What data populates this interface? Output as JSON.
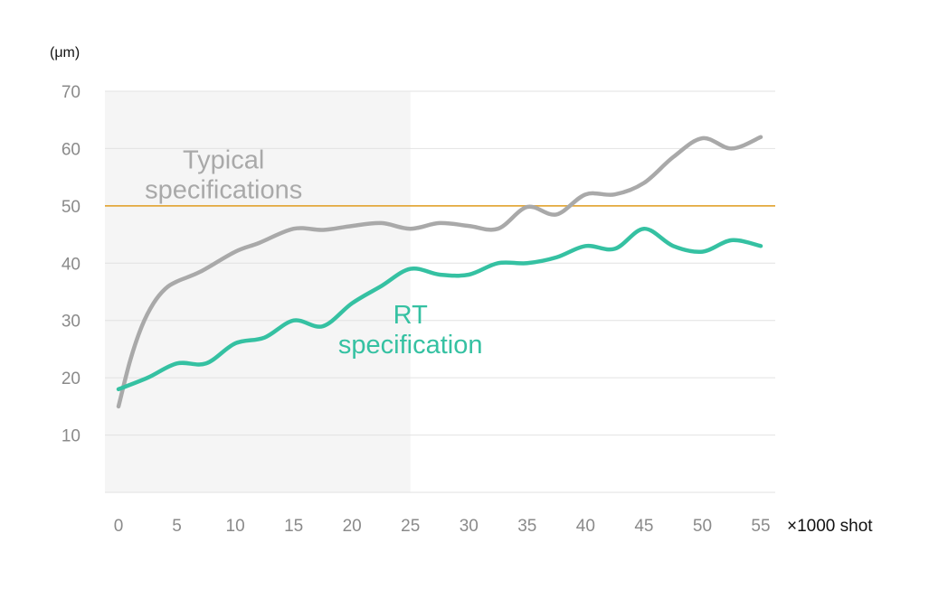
{
  "chart_data": {
    "type": "line",
    "title": "",
    "ylabel": "(μm)",
    "xlabel": "×1000 shot",
    "xlim": [
      0,
      55
    ],
    "ylim": [
      0,
      70
    ],
    "x_ticks": [
      0,
      5,
      10,
      15,
      20,
      25,
      30,
      35,
      40,
      45,
      50,
      55
    ],
    "y_ticks": [
      10,
      20,
      30,
      40,
      50,
      60,
      70
    ],
    "grid": true,
    "shaded_region": {
      "x_from": 0,
      "x_to": 25,
      "color": "#f5f5f5"
    },
    "reference_line": {
      "y": 50,
      "color": "#e3a83c"
    },
    "series": [
      {
        "name_lines": [
          "Typical",
          "specifications"
        ],
        "color": "#a9a9a9",
        "label_at": {
          "x": 9,
          "y": 56.5
        },
        "points": [
          [
            0,
            15
          ],
          [
            1,
            23
          ],
          [
            2,
            29
          ],
          [
            3,
            33
          ],
          [
            4,
            35.5
          ],
          [
            5,
            36.8
          ],
          [
            7,
            38.5
          ],
          [
            10,
            42
          ],
          [
            12,
            43.5
          ],
          [
            15,
            46
          ],
          [
            17.5,
            45.8
          ],
          [
            20,
            46.5
          ],
          [
            22.5,
            47
          ],
          [
            25,
            46
          ],
          [
            27.5,
            47
          ],
          [
            30,
            46.5
          ],
          [
            32.5,
            46
          ],
          [
            35,
            49.8
          ],
          [
            37.5,
            48.5
          ],
          [
            40,
            52
          ],
          [
            42.5,
            52
          ],
          [
            45,
            54
          ],
          [
            47.5,
            58.5
          ],
          [
            50,
            61.8
          ],
          [
            52.5,
            60
          ],
          [
            55,
            62
          ]
        ]
      },
      {
        "name_lines": [
          "RT",
          "specification"
        ],
        "color": "#35c1a2",
        "label_at": {
          "x": 25,
          "y": 29.5
        },
        "points": [
          [
            0,
            18
          ],
          [
            2.5,
            20
          ],
          [
            5,
            22.5
          ],
          [
            7.5,
            22.5
          ],
          [
            10,
            26
          ],
          [
            12.5,
            27
          ],
          [
            15,
            30
          ],
          [
            17.5,
            29
          ],
          [
            20,
            33
          ],
          [
            22.5,
            36
          ],
          [
            25,
            39
          ],
          [
            27.5,
            38
          ],
          [
            30,
            38
          ],
          [
            32.5,
            40
          ],
          [
            35,
            40
          ],
          [
            37.5,
            41
          ],
          [
            40,
            43
          ],
          [
            42.5,
            42.5
          ],
          [
            45,
            46
          ],
          [
            47.5,
            43
          ],
          [
            50,
            42
          ],
          [
            52.5,
            44
          ],
          [
            55,
            43
          ]
        ]
      }
    ]
  }
}
